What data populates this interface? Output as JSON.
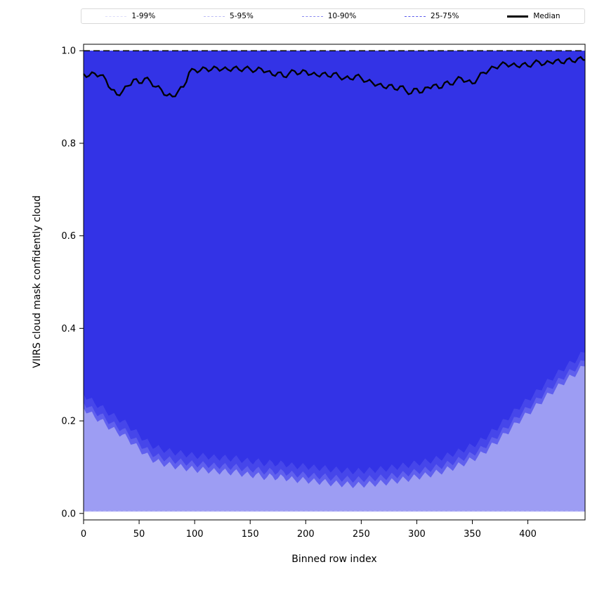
{
  "chart_data": {
    "type": "area",
    "title": "",
    "xlabel": "Binned row index",
    "ylabel": "VIIRS cloud mask confidently cloud",
    "xlim": [
      0,
      451.5
    ],
    "ylim": [
      -0.014,
      1.014
    ],
    "xticks": [
      0,
      50,
      100,
      150,
      200,
      250,
      300,
      350,
      400
    ],
    "xtick_labels": [
      "0",
      "50",
      "100",
      "150",
      "200",
      "250",
      "300",
      "350",
      "400"
    ],
    "yticks": [
      0.0,
      0.2,
      0.4,
      0.6,
      0.8,
      1.0
    ],
    "ytick_labels": [
      "0.0",
      "0.2",
      "0.4",
      "0.6",
      "0.8",
      "1.0"
    ],
    "grid": false,
    "legend_position": "top-outside",
    "legend": [
      {
        "label": "1-99%",
        "color": "#dcdcf9",
        "style": "dashed",
        "width": 1.5
      },
      {
        "label": "5-95%",
        "color": "#bcbcf5",
        "style": "dashed",
        "width": 1.5
      },
      {
        "label": "10-90%",
        "color": "#8a8af0",
        "style": "dashed",
        "width": 1.5
      },
      {
        "label": "25-75%",
        "color": "#5a5aec",
        "style": "dashed",
        "width": 1.5
      },
      {
        "label": "Median",
        "color": "#000000",
        "style": "solid",
        "width": 3
      }
    ],
    "colors": {
      "band_1_99_fill": "#9d9df3",
      "band_5_95_fill": "#6060ee",
      "band_10_90_fill": "#4646ea",
      "band_25_75_fill": "#3333e6",
      "median_line": "#000000",
      "top_dashed_line": "#000000",
      "bottom_dashed_line": "#d8d8fa",
      "axis": "#000000"
    },
    "upper_bound": 1.0,
    "p1_lower": 0.004,
    "p10_offset_from_p5": 0.012,
    "p25_offset_from_p5": 0.03,
    "noise": {
      "median": 0.005,
      "band": 0.007
    },
    "x": [
      0,
      5,
      10,
      15,
      20,
      25,
      30,
      35,
      40,
      45,
      50,
      55,
      60,
      65,
      70,
      75,
      80,
      85,
      90,
      95,
      100,
      105,
      110,
      115,
      120,
      125,
      130,
      135,
      140,
      145,
      150,
      155,
      160,
      165,
      170,
      175,
      180,
      185,
      190,
      195,
      200,
      205,
      210,
      215,
      220,
      225,
      230,
      235,
      240,
      245,
      250,
      255,
      260,
      265,
      270,
      275,
      280,
      285,
      290,
      295,
      300,
      305,
      310,
      315,
      320,
      325,
      330,
      335,
      340,
      345,
      350,
      355,
      360,
      365,
      370,
      375,
      380,
      385,
      390,
      395,
      400,
      405,
      410,
      415,
      420,
      425,
      430,
      435,
      440,
      445,
      450
    ],
    "median": [
      0.95,
      0.946,
      0.951,
      0.947,
      0.938,
      0.916,
      0.905,
      0.912,
      0.924,
      0.938,
      0.93,
      0.94,
      0.934,
      0.922,
      0.916,
      0.903,
      0.901,
      0.912,
      0.922,
      0.953,
      0.959,
      0.957,
      0.962,
      0.959,
      0.963,
      0.96,
      0.959,
      0.963,
      0.959,
      0.962,
      0.96,
      0.957,
      0.961,
      0.955,
      0.948,
      0.953,
      0.944,
      0.951,
      0.956,
      0.951,
      0.956,
      0.949,
      0.947,
      0.951,
      0.945,
      0.951,
      0.944,
      0.941,
      0.939,
      0.946,
      0.941,
      0.934,
      0.931,
      0.927,
      0.921,
      0.926,
      0.917,
      0.923,
      0.914,
      0.908,
      0.918,
      0.91,
      0.921,
      0.926,
      0.919,
      0.931,
      0.927,
      0.936,
      0.941,
      0.934,
      0.929,
      0.941,
      0.953,
      0.958,
      0.964,
      0.969,
      0.972,
      0.969,
      0.967,
      0.971,
      0.967,
      0.973,
      0.976,
      0.971,
      0.975,
      0.979,
      0.974,
      0.981,
      0.977,
      0.983,
      0.98
    ],
    "p5_lower": [
      0.228,
      0.218,
      0.208,
      0.202,
      0.192,
      0.184,
      0.176,
      0.17,
      0.161,
      0.15,
      0.14,
      0.129,
      0.12,
      0.113,
      0.109,
      0.106,
      0.103,
      0.101,
      0.099,
      0.097,
      0.095,
      0.094,
      0.094,
      0.092,
      0.09,
      0.092,
      0.088,
      0.09,
      0.087,
      0.085,
      0.082,
      0.084,
      0.08,
      0.078,
      0.081,
      0.076,
      0.079,
      0.074,
      0.073,
      0.072,
      0.072,
      0.07,
      0.068,
      0.069,
      0.066,
      0.065,
      0.064,
      0.063,
      0.062,
      0.061,
      0.062,
      0.063,
      0.064,
      0.065,
      0.066,
      0.068,
      0.07,
      0.072,
      0.074,
      0.076,
      0.079,
      0.081,
      0.083,
      0.086,
      0.089,
      0.093,
      0.097,
      0.101,
      0.106,
      0.111,
      0.117,
      0.123,
      0.131,
      0.141,
      0.151,
      0.161,
      0.173,
      0.183,
      0.196,
      0.206,
      0.216,
      0.226,
      0.237,
      0.249,
      0.259,
      0.269,
      0.279,
      0.289,
      0.297,
      0.306,
      0.318
    ]
  }
}
